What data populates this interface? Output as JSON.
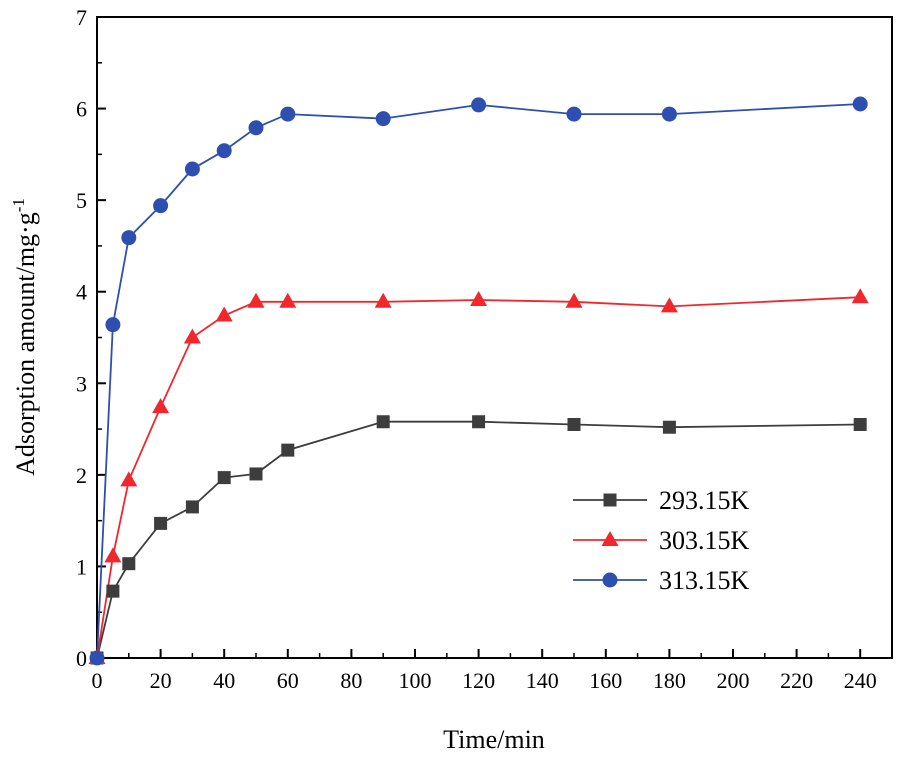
{
  "chart_data": {
    "type": "line",
    "title": "",
    "xlabel": "Time/min",
    "ylabel_main": "Adsorption amount/mg·g",
    "ylabel_superscript": "-1",
    "xlim": [
      0,
      250
    ],
    "ylim": [
      0,
      7
    ],
    "xticks": [
      0,
      20,
      40,
      60,
      80,
      100,
      120,
      140,
      160,
      180,
      200,
      220,
      240
    ],
    "yticks": [
      0,
      1,
      2,
      3,
      4,
      5,
      6,
      7
    ],
    "xtick_labels": [
      "0",
      "20",
      "40",
      "60",
      "80",
      "100",
      "120",
      "140",
      "160",
      "180",
      "200",
      "220",
      "240"
    ],
    "ytick_labels": [
      "0",
      "1",
      "2",
      "3",
      "4",
      "5",
      "6",
      "7"
    ],
    "legend_position": "bottom-right",
    "grid": false,
    "series": [
      {
        "name": "293.15K",
        "color": "#3d3d3d",
        "marker": "square",
        "x": [
          0,
          5,
          10,
          20,
          30,
          40,
          50,
          60,
          90,
          120,
          150,
          180,
          240
        ],
        "y": [
          0,
          0.73,
          1.03,
          1.47,
          1.65,
          1.97,
          2.01,
          2.27,
          2.58,
          2.58,
          2.55,
          2.52,
          2.55
        ]
      },
      {
        "name": "303.15K",
        "color": "#f0282d",
        "marker": "triangle",
        "x": [
          0,
          5,
          10,
          20,
          30,
          40,
          50,
          60,
          90,
          120,
          150,
          180,
          240
        ],
        "y": [
          0,
          1.11,
          1.94,
          2.74,
          3.5,
          3.74,
          3.89,
          3.89,
          3.89,
          3.91,
          3.89,
          3.84,
          3.94
        ]
      },
      {
        "name": "313.15K",
        "color": "#2e4fb0",
        "marker": "circle",
        "x": [
          0,
          5,
          10,
          20,
          30,
          40,
          50,
          60,
          90,
          120,
          150,
          180,
          240
        ],
        "y": [
          0,
          3.64,
          4.59,
          4.94,
          5.34,
          5.54,
          5.79,
          5.94,
          5.89,
          6.04,
          5.94,
          5.94,
          6.05
        ]
      }
    ]
  }
}
